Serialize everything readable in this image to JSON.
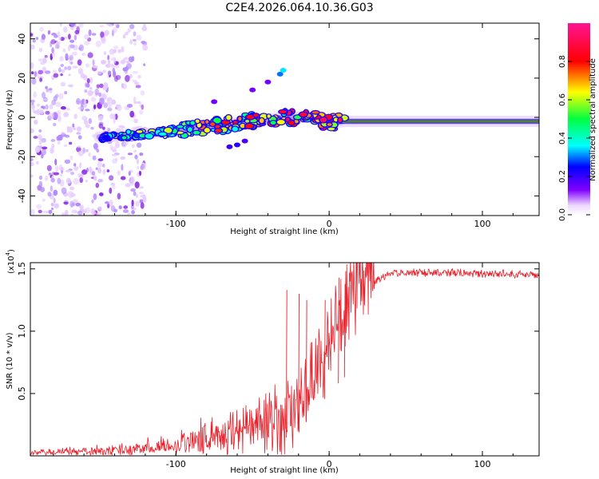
{
  "title": "C2E4.2026.064.10.36.G03",
  "chart_data": [
    {
      "type": "heatmap",
      "xlabel": "Height of straight line (km)",
      "ylabel": "Frequency (Hz)",
      "xlim": [
        -195,
        137
      ],
      "ylim": [
        -50,
        48
      ],
      "x_ticks": [
        -100,
        0,
        100
      ],
      "x_tick_labels": [
        "-100",
        "0",
        "100"
      ],
      "y_ticks": [
        -40,
        -20,
        0,
        20,
        40
      ],
      "y_tick_labels": [
        "-40",
        "-20",
        "0",
        "20",
        "40"
      ],
      "colorbar": {
        "label": "Normalized spectral amplitude",
        "range": [
          0,
          1
        ],
        "ticks": [
          0.0,
          0.2,
          0.4,
          0.6,
          0.8
        ],
        "tick_labels": [
          "0.0",
          "0.2",
          "0.4",
          "0.6",
          "0.8"
        ]
      },
      "ridge": {
        "x": [
          -145,
          -130,
          -115,
          -100,
          -85,
          -70,
          -55,
          -40,
          -30,
          -20,
          -10,
          -5,
          0,
          10,
          30,
          60,
          100,
          137
        ],
        "frequency": [
          -10,
          -9,
          -8,
          -7,
          -5,
          -4,
          -2,
          -1,
          0,
          0,
          0,
          -2,
          -3,
          -2,
          -2,
          -2,
          -2,
          -2
        ]
      },
      "noise_region_x": [
        -195,
        -120
      ]
    },
    {
      "type": "line",
      "xlabel": "Height of straight line (km)",
      "ylabel": "SNR (10 * v/v)",
      "y_multiplier": "(x10",
      "y_exponent": "4",
      "y_multiplier_close": ")",
      "xlim": [
        -195,
        137
      ],
      "ylim": [
        0,
        1.55
      ],
      "x_ticks": [
        -100,
        0,
        100
      ],
      "x_tick_labels": [
        "-100",
        "0",
        "100"
      ],
      "y_ticks": [
        0.5,
        1.0,
        1.5
      ],
      "y_tick_labels": [
        "0.5",
        "1.0",
        "1.5"
      ],
      "color": "#e8202a",
      "trend": {
        "x": [
          -195,
          -150,
          -130,
          -110,
          -90,
          -70,
          -50,
          -40,
          -30,
          -25,
          -20,
          -15,
          -10,
          -5,
          0,
          5,
          10,
          15,
          20,
          25,
          30,
          35,
          40,
          50,
          70,
          100,
          137
        ],
        "y": [
          0.02,
          0.03,
          0.04,
          0.06,
          0.09,
          0.13,
          0.17,
          0.2,
          0.23,
          0.26,
          0.35,
          0.45,
          0.55,
          0.7,
          0.85,
          0.95,
          1.05,
          1.15,
          1.27,
          1.35,
          1.42,
          1.46,
          1.48,
          1.49,
          1.49,
          1.48,
          1.47
        ]
      },
      "spikes": [
        {
          "x": -28,
          "y": 1.33
        },
        {
          "x": -20,
          "y": 1.3
        },
        {
          "x": -15,
          "y": 1.25
        },
        {
          "x": -3,
          "y": 1.25
        },
        {
          "x": 6,
          "y": 1.43
        },
        {
          "x": 10,
          "y": 1.38
        }
      ]
    }
  ]
}
